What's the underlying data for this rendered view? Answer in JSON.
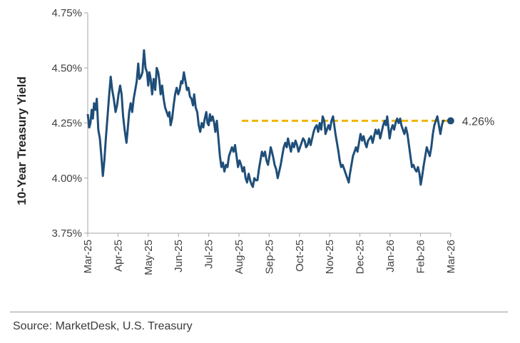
{
  "chart_data": {
    "type": "line",
    "ylabel": "10-Year Treasury Yield",
    "xlabel": "",
    "title": "",
    "yticks": [
      4.75,
      4.5,
      4.25,
      4.0,
      3.75
    ],
    "ytick_labels": [
      "4.75%",
      "4.50%",
      "4.25%",
      "4.00%",
      "3.75%"
    ],
    "ylim": [
      3.75,
      4.75
    ],
    "categories": [
      "Mar-25",
      "Apr-25",
      "May-25",
      "Jun-25",
      "Jul-25",
      "Aug-25",
      "Sep-25",
      "Oct-25",
      "Nov-25",
      "Dec-25",
      "Jan-26",
      "Feb-26",
      "Mar-26"
    ],
    "reference_line": {
      "value": 4.26,
      "from": "Aug-25",
      "to": "Mar-26",
      "color": "#f0b400",
      "style": "dashed"
    },
    "end_point": {
      "x": "Mar-26",
      "value": 4.26,
      "label": "4.26%"
    },
    "grid": false,
    "colors": {
      "series": "#1f4e79",
      "reference": "#f0b400",
      "axis": "#a6a6a6"
    },
    "series": [
      {
        "values": [
          [
            0.0,
            4.29
          ],
          [
            0.05,
            4.23
          ],
          [
            0.09,
            4.25
          ],
          [
            0.13,
            4.31
          ],
          [
            0.17,
            4.27
          ],
          [
            0.21,
            4.34
          ],
          [
            0.26,
            4.31
          ],
          [
            0.3,
            4.36
          ],
          [
            0.35,
            4.22
          ],
          [
            0.4,
            4.18
          ],
          [
            0.45,
            4.1
          ],
          [
            0.5,
            4.01
          ],
          [
            0.55,
            4.08
          ],
          [
            0.6,
            4.18
          ],
          [
            0.66,
            4.29
          ],
          [
            0.71,
            4.38
          ],
          [
            0.76,
            4.46
          ],
          [
            0.81,
            4.4
          ],
          [
            0.86,
            4.36
          ],
          [
            0.92,
            4.3
          ],
          [
            0.97,
            4.33
          ],
          [
            1.02,
            4.38
          ],
          [
            1.07,
            4.42
          ],
          [
            1.12,
            4.38
          ],
          [
            1.17,
            4.28
          ],
          [
            1.22,
            4.22
          ],
          [
            1.28,
            4.16
          ],
          [
            1.32,
            4.22
          ],
          [
            1.37,
            4.3
          ],
          [
            1.42,
            4.34
          ],
          [
            1.47,
            4.3
          ],
          [
            1.52,
            4.36
          ],
          [
            1.57,
            4.4
          ],
          [
            1.62,
            4.44
          ],
          [
            1.67,
            4.52
          ],
          [
            1.71,
            4.45
          ],
          [
            1.76,
            4.46
          ],
          [
            1.81,
            4.48
          ],
          [
            1.86,
            4.58
          ],
          [
            1.91,
            4.5
          ],
          [
            1.96,
            4.48
          ],
          [
            2.0,
            4.42
          ],
          [
            2.04,
            4.48
          ],
          [
            2.08,
            4.45
          ],
          [
            2.13,
            4.38
          ],
          [
            2.18,
            4.45
          ],
          [
            2.23,
            4.4
          ],
          [
            2.28,
            4.5
          ],
          [
            2.33,
            4.48
          ],
          [
            2.37,
            4.44
          ],
          [
            2.41,
            4.38
          ],
          [
            2.46,
            4.42
          ],
          [
            2.51,
            4.36
          ],
          [
            2.56,
            4.32
          ],
          [
            2.61,
            4.3
          ],
          [
            2.66,
            4.28
          ],
          [
            2.7,
            4.3
          ],
          [
            2.74,
            4.24
          ],
          [
            2.79,
            4.27
          ],
          [
            2.84,
            4.33
          ],
          [
            2.89,
            4.38
          ],
          [
            2.94,
            4.41
          ],
          [
            2.99,
            4.38
          ],
          [
            3.04,
            4.4
          ],
          [
            3.09,
            4.44
          ],
          [
            3.13,
            4.43
          ],
          [
            3.18,
            4.48
          ],
          [
            3.23,
            4.44
          ],
          [
            3.28,
            4.4
          ],
          [
            3.33,
            4.41
          ],
          [
            3.38,
            4.37
          ],
          [
            3.43,
            4.36
          ],
          [
            3.48,
            4.33
          ],
          [
            3.52,
            4.38
          ],
          [
            3.57,
            4.32
          ],
          [
            3.62,
            4.3
          ],
          [
            3.67,
            4.24
          ],
          [
            3.72,
            4.21
          ],
          [
            3.77,
            4.25
          ],
          [
            3.82,
            4.23
          ],
          [
            3.87,
            4.27
          ],
          [
            3.92,
            4.3
          ],
          [
            3.96,
            4.25
          ],
          [
            4.0,
            4.24
          ],
          [
            4.04,
            4.29
          ],
          [
            4.08,
            4.26
          ],
          [
            4.13,
            4.28
          ],
          [
            4.18,
            4.25
          ],
          [
            4.22,
            4.21
          ],
          [
            4.27,
            4.26
          ],
          [
            4.32,
            4.18
          ],
          [
            4.37,
            4.1
          ],
          [
            4.42,
            4.05
          ],
          [
            4.47,
            4.07
          ],
          [
            4.52,
            4.03
          ],
          [
            4.57,
            4.06
          ],
          [
            4.62,
            4.05
          ],
          [
            4.67,
            4.1
          ],
          [
            4.72,
            4.12
          ],
          [
            4.77,
            4.14
          ],
          [
            4.82,
            4.12
          ],
          [
            4.87,
            4.15
          ],
          [
            4.92,
            4.1
          ],
          [
            4.97,
            4.05
          ],
          [
            5.02,
            4.08
          ],
          [
            5.07,
            4.06
          ],
          [
            5.12,
            4.03
          ],
          [
            5.17,
            4.05
          ],
          [
            5.22,
            4.0
          ],
          [
            5.27,
            3.98
          ],
          [
            5.32,
            4.02
          ],
          [
            5.37,
            3.99
          ],
          [
            5.42,
            3.97
          ],
          [
            5.46,
            3.96
          ],
          [
            5.51,
            4.0
          ],
          [
            5.56,
            3.99
          ],
          [
            5.61,
            3.99
          ],
          [
            5.66,
            4.04
          ],
          [
            5.71,
            4.08
          ],
          [
            5.76,
            4.12
          ],
          [
            5.81,
            4.1
          ],
          [
            5.86,
            4.12
          ],
          [
            5.91,
            4.08
          ],
          [
            5.96,
            4.06
          ],
          [
            6.01,
            4.1
          ],
          [
            6.05,
            4.14
          ],
          [
            6.09,
            4.12
          ],
          [
            6.14,
            4.09
          ],
          [
            6.18,
            4.06
          ],
          [
            6.23,
            4.04
          ],
          [
            6.28,
            4.0
          ],
          [
            6.33,
            4.03
          ],
          [
            6.38,
            4.06
          ],
          [
            6.43,
            4.1
          ],
          [
            6.48,
            4.14
          ],
          [
            6.53,
            4.16
          ],
          [
            6.58,
            4.14
          ],
          [
            6.62,
            4.18
          ],
          [
            6.67,
            4.15
          ],
          [
            6.72,
            4.12
          ],
          [
            6.77,
            4.16
          ],
          [
            6.82,
            4.14
          ],
          [
            6.87,
            4.17
          ],
          [
            6.92,
            4.15
          ],
          [
            6.97,
            4.12
          ],
          [
            7.02,
            4.14
          ],
          [
            7.07,
            4.16
          ],
          [
            7.12,
            4.18
          ],
          [
            7.17,
            4.17
          ],
          [
            7.22,
            4.14
          ],
          [
            7.27,
            4.15
          ],
          [
            7.32,
            4.18
          ],
          [
            7.37,
            4.15
          ],
          [
            7.42,
            4.18
          ],
          [
            7.47,
            4.21
          ],
          [
            7.52,
            4.23
          ],
          [
            7.57,
            4.24
          ],
          [
            7.62,
            4.21
          ],
          [
            7.67,
            4.25
          ],
          [
            7.72,
            4.22
          ],
          [
            7.77,
            4.28
          ],
          [
            7.82,
            4.26
          ],
          [
            7.86,
            4.2
          ],
          [
            7.91,
            4.22
          ],
          [
            7.96,
            4.24
          ],
          [
            8.01,
            4.22
          ],
          [
            8.06,
            4.26
          ],
          [
            8.11,
            4.28
          ],
          [
            8.15,
            4.24
          ],
          [
            8.19,
            4.2
          ],
          [
            8.24,
            4.16
          ],
          [
            8.29,
            4.12
          ],
          [
            8.33,
            4.08
          ],
          [
            8.38,
            4.05
          ],
          [
            8.43,
            4.06
          ],
          [
            8.48,
            4.04
          ],
          [
            8.53,
            4.02
          ],
          [
            8.58,
            4.0
          ],
          [
            8.63,
            3.98
          ],
          [
            8.67,
            4.02
          ],
          [
            8.72,
            4.06
          ],
          [
            8.77,
            4.1
          ],
          [
            8.82,
            4.12
          ],
          [
            8.87,
            4.14
          ],
          [
            8.92,
            4.12
          ],
          [
            8.97,
            4.16
          ],
          [
            9.02,
            4.2
          ],
          [
            9.07,
            4.17
          ],
          [
            9.12,
            4.19
          ],
          [
            9.17,
            4.16
          ],
          [
            9.22,
            4.14
          ],
          [
            9.27,
            4.17
          ],
          [
            9.32,
            4.18
          ],
          [
            9.37,
            4.19
          ],
          [
            9.42,
            4.16
          ],
          [
            9.47,
            4.19
          ],
          [
            9.52,
            4.22
          ],
          [
            9.57,
            4.2
          ],
          [
            9.62,
            4.22
          ],
          [
            9.67,
            4.18
          ],
          [
            9.72,
            4.21
          ],
          [
            9.77,
            4.24
          ],
          [
            9.82,
            4.26
          ],
          [
            9.86,
            4.24
          ],
          [
            9.9,
            4.28
          ],
          [
            9.94,
            4.23
          ],
          [
            9.98,
            4.18
          ],
          [
            10.03,
            4.22
          ],
          [
            10.08,
            4.24
          ],
          [
            10.13,
            4.22
          ],
          [
            10.18,
            4.25
          ],
          [
            10.23,
            4.27
          ],
          [
            10.28,
            4.25
          ],
          [
            10.33,
            4.27
          ],
          [
            10.37,
            4.24
          ],
          [
            10.42,
            4.22
          ],
          [
            10.47,
            4.2
          ],
          [
            10.52,
            4.23
          ],
          [
            10.57,
            4.2
          ],
          [
            10.62,
            4.15
          ],
          [
            10.67,
            4.1
          ],
          [
            10.72,
            4.05
          ],
          [
            10.77,
            4.06
          ],
          [
            10.82,
            4.04
          ],
          [
            10.87,
            4.03
          ],
          [
            10.92,
            4.05
          ],
          [
            10.97,
            4.02
          ],
          [
            11.01,
            3.97
          ],
          [
            11.06,
            4.01
          ],
          [
            11.11,
            4.06
          ],
          [
            11.16,
            4.1
          ],
          [
            11.21,
            4.14
          ],
          [
            11.26,
            4.12
          ],
          [
            11.31,
            4.1
          ],
          [
            11.36,
            4.14
          ],
          [
            11.41,
            4.2
          ],
          [
            11.46,
            4.24
          ],
          [
            11.51,
            4.26
          ],
          [
            11.56,
            4.28
          ],
          [
            11.61,
            4.24
          ],
          [
            11.66,
            4.2
          ],
          [
            11.71,
            4.24
          ],
          [
            11.75,
            4.26
          ],
          [
            11.8,
            4.26
          ]
        ]
      }
    ]
  },
  "source": "Source: MarketDesk, U.S. Treasury"
}
